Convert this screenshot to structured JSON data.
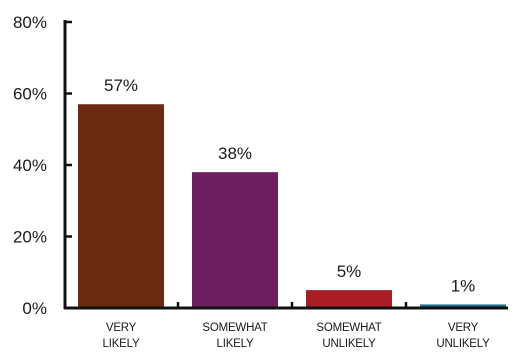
{
  "chart_data": {
    "type": "bar",
    "categories": [
      [
        "VERY",
        "LIKELY"
      ],
      [
        "SOMEWHAT",
        "LIKELY"
      ],
      [
        "SOMEWHAT",
        "UNLIKELY"
      ],
      [
        "VERY",
        "UNLIKELY"
      ]
    ],
    "values": [
      57,
      38,
      5,
      1
    ],
    "data_labels": [
      "57%",
      "38%",
      "5%",
      "1%"
    ],
    "bar_colors": [
      "#6b2a12",
      "#6c1e5e",
      "#a81e24",
      "#1f6f8a"
    ],
    "ylim": [
      0,
      80
    ],
    "yticks": [
      0,
      20,
      40,
      60,
      80
    ],
    "ytick_labels": [
      "0%",
      "20%",
      "40%",
      "60%",
      "80%"
    ],
    "grid": false,
    "legend": "none",
    "title": "",
    "xlabel": "",
    "ylabel": ""
  }
}
